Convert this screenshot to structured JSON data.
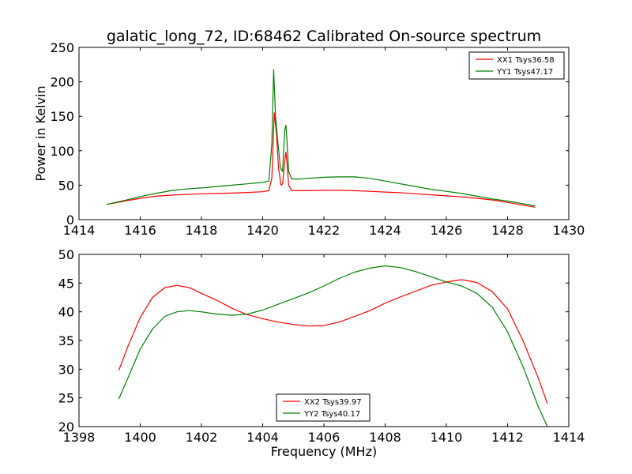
{
  "chart_data": [
    {
      "type": "line",
      "title": "galatic_long_72, ID:68462 Calibrated On-source spectrum",
      "xlabel": "",
      "ylabel": "Power in Kelvin",
      "xlim": [
        1414,
        1430
      ],
      "ylim": [
        0,
        250
      ],
      "xticks": [
        1414,
        1416,
        1418,
        1420,
        1422,
        1424,
        1426,
        1428,
        1430
      ],
      "yticks": [
        0,
        50,
        100,
        150,
        200,
        250
      ],
      "grid": false,
      "legend": "top-right",
      "series": [
        {
          "name": "XX1 Tsys36.58",
          "color": "#ff0000",
          "x": [
            1414.9,
            1415.5,
            1416.0,
            1416.5,
            1417.0,
            1417.5,
            1418.0,
            1418.5,
            1419.0,
            1419.5,
            1420.0,
            1420.2,
            1420.3,
            1420.38,
            1420.45,
            1420.52,
            1420.6,
            1420.65,
            1420.72,
            1420.76,
            1420.8,
            1420.85,
            1420.95,
            1421.2,
            1421.5,
            1422.0,
            1422.5,
            1423.0,
            1423.5,
            1424.0,
            1424.5,
            1425.0,
            1425.5,
            1426.0,
            1426.5,
            1427.0,
            1427.5,
            1428.0,
            1428.5,
            1428.9
          ],
          "values": [
            22,
            27,
            31,
            34,
            35.5,
            36.5,
            37.5,
            38,
            38.5,
            39.5,
            40.5,
            42,
            60,
            155,
            125,
            75,
            50,
            52,
            85,
            98,
            80,
            50,
            42,
            42,
            42,
            42.5,
            42.5,
            42,
            41,
            40,
            39,
            37.5,
            36,
            34.5,
            33,
            31,
            28.5,
            25,
            21,
            18
          ]
        },
        {
          "name": "YY1 Tsys47.17",
          "color": "#007f00",
          "x": [
            1414.9,
            1415.5,
            1416.0,
            1416.5,
            1417.0,
            1417.5,
            1418.0,
            1418.5,
            1419.0,
            1419.5,
            1420.0,
            1420.2,
            1420.3,
            1420.36,
            1420.42,
            1420.5,
            1420.58,
            1420.65,
            1420.72,
            1420.76,
            1420.8,
            1420.85,
            1420.95,
            1421.2,
            1421.5,
            1422.0,
            1422.5,
            1423.0,
            1423.5,
            1424.0,
            1424.5,
            1425.0,
            1425.5,
            1426.0,
            1426.5,
            1427.0,
            1427.5,
            1428.0,
            1428.5,
            1428.9
          ],
          "values": [
            22,
            28,
            33.5,
            38,
            42,
            44.5,
            46,
            48,
            50,
            52,
            54,
            56,
            110,
            218,
            150,
            110,
            75,
            70,
            130,
            137,
            110,
            70,
            59,
            59,
            60,
            61.5,
            62,
            62,
            60,
            56,
            52,
            48,
            44,
            41,
            38,
            34,
            30,
            27,
            23,
            20
          ]
        }
      ]
    },
    {
      "type": "line",
      "title": "",
      "xlabel": "Frequency (MHz)",
      "ylabel": "",
      "xlim": [
        1398,
        1414
      ],
      "ylim": [
        20,
        50
      ],
      "xticks": [
        1398,
        1400,
        1402,
        1404,
        1406,
        1408,
        1410,
        1412,
        1414
      ],
      "yticks": [
        20,
        25,
        30,
        35,
        40,
        45,
        50
      ],
      "grid": false,
      "legend": "bottom-center",
      "series": [
        {
          "name": "XX2 Tsys39.97",
          "color": "#ff0000",
          "x": [
            1399.3,
            1399.6,
            1400.0,
            1400.4,
            1400.8,
            1401.2,
            1401.6,
            1402.0,
            1402.5,
            1403.0,
            1403.5,
            1404.0,
            1404.5,
            1405.0,
            1405.5,
            1406.0,
            1406.5,
            1407.0,
            1407.5,
            1408.0,
            1408.5,
            1409.0,
            1409.5,
            1410.0,
            1410.5,
            1411.0,
            1411.5,
            1412.0,
            1412.5,
            1413.0,
            1413.3
          ],
          "values": [
            29.8,
            34,
            39,
            42.5,
            44.2,
            44.6,
            44.2,
            43.2,
            42,
            40.6,
            39.5,
            38.8,
            38.2,
            37.8,
            37.5,
            37.6,
            38.2,
            39.2,
            40.2,
            41.5,
            42.6,
            43.6,
            44.6,
            45.2,
            45.6,
            45.1,
            43.5,
            40.5,
            35,
            28.5,
            24
          ]
        },
        {
          "name": "YY2 Tsys40.17",
          "color": "#007f00",
          "x": [
            1399.3,
            1399.6,
            1400.0,
            1400.4,
            1400.8,
            1401.2,
            1401.6,
            1402.0,
            1402.5,
            1403.0,
            1403.5,
            1404.0,
            1404.5,
            1405.0,
            1405.5,
            1406.0,
            1406.5,
            1407.0,
            1407.5,
            1408.0,
            1408.5,
            1409.0,
            1409.5,
            1410.0,
            1410.5,
            1411.0,
            1411.5,
            1412.0,
            1412.5,
            1413.0,
            1413.3
          ],
          "values": [
            24.8,
            28.5,
            33.5,
            37,
            39.2,
            40,
            40.2,
            40,
            39.6,
            39.4,
            39.6,
            40.3,
            41.3,
            42.3,
            43.3,
            44.5,
            45.8,
            46.9,
            47.6,
            48,
            47.7,
            47,
            46.1,
            45.2,
            44.5,
            43.2,
            40.8,
            36.5,
            30.5,
            23.5,
            20
          ]
        }
      ]
    }
  ]
}
